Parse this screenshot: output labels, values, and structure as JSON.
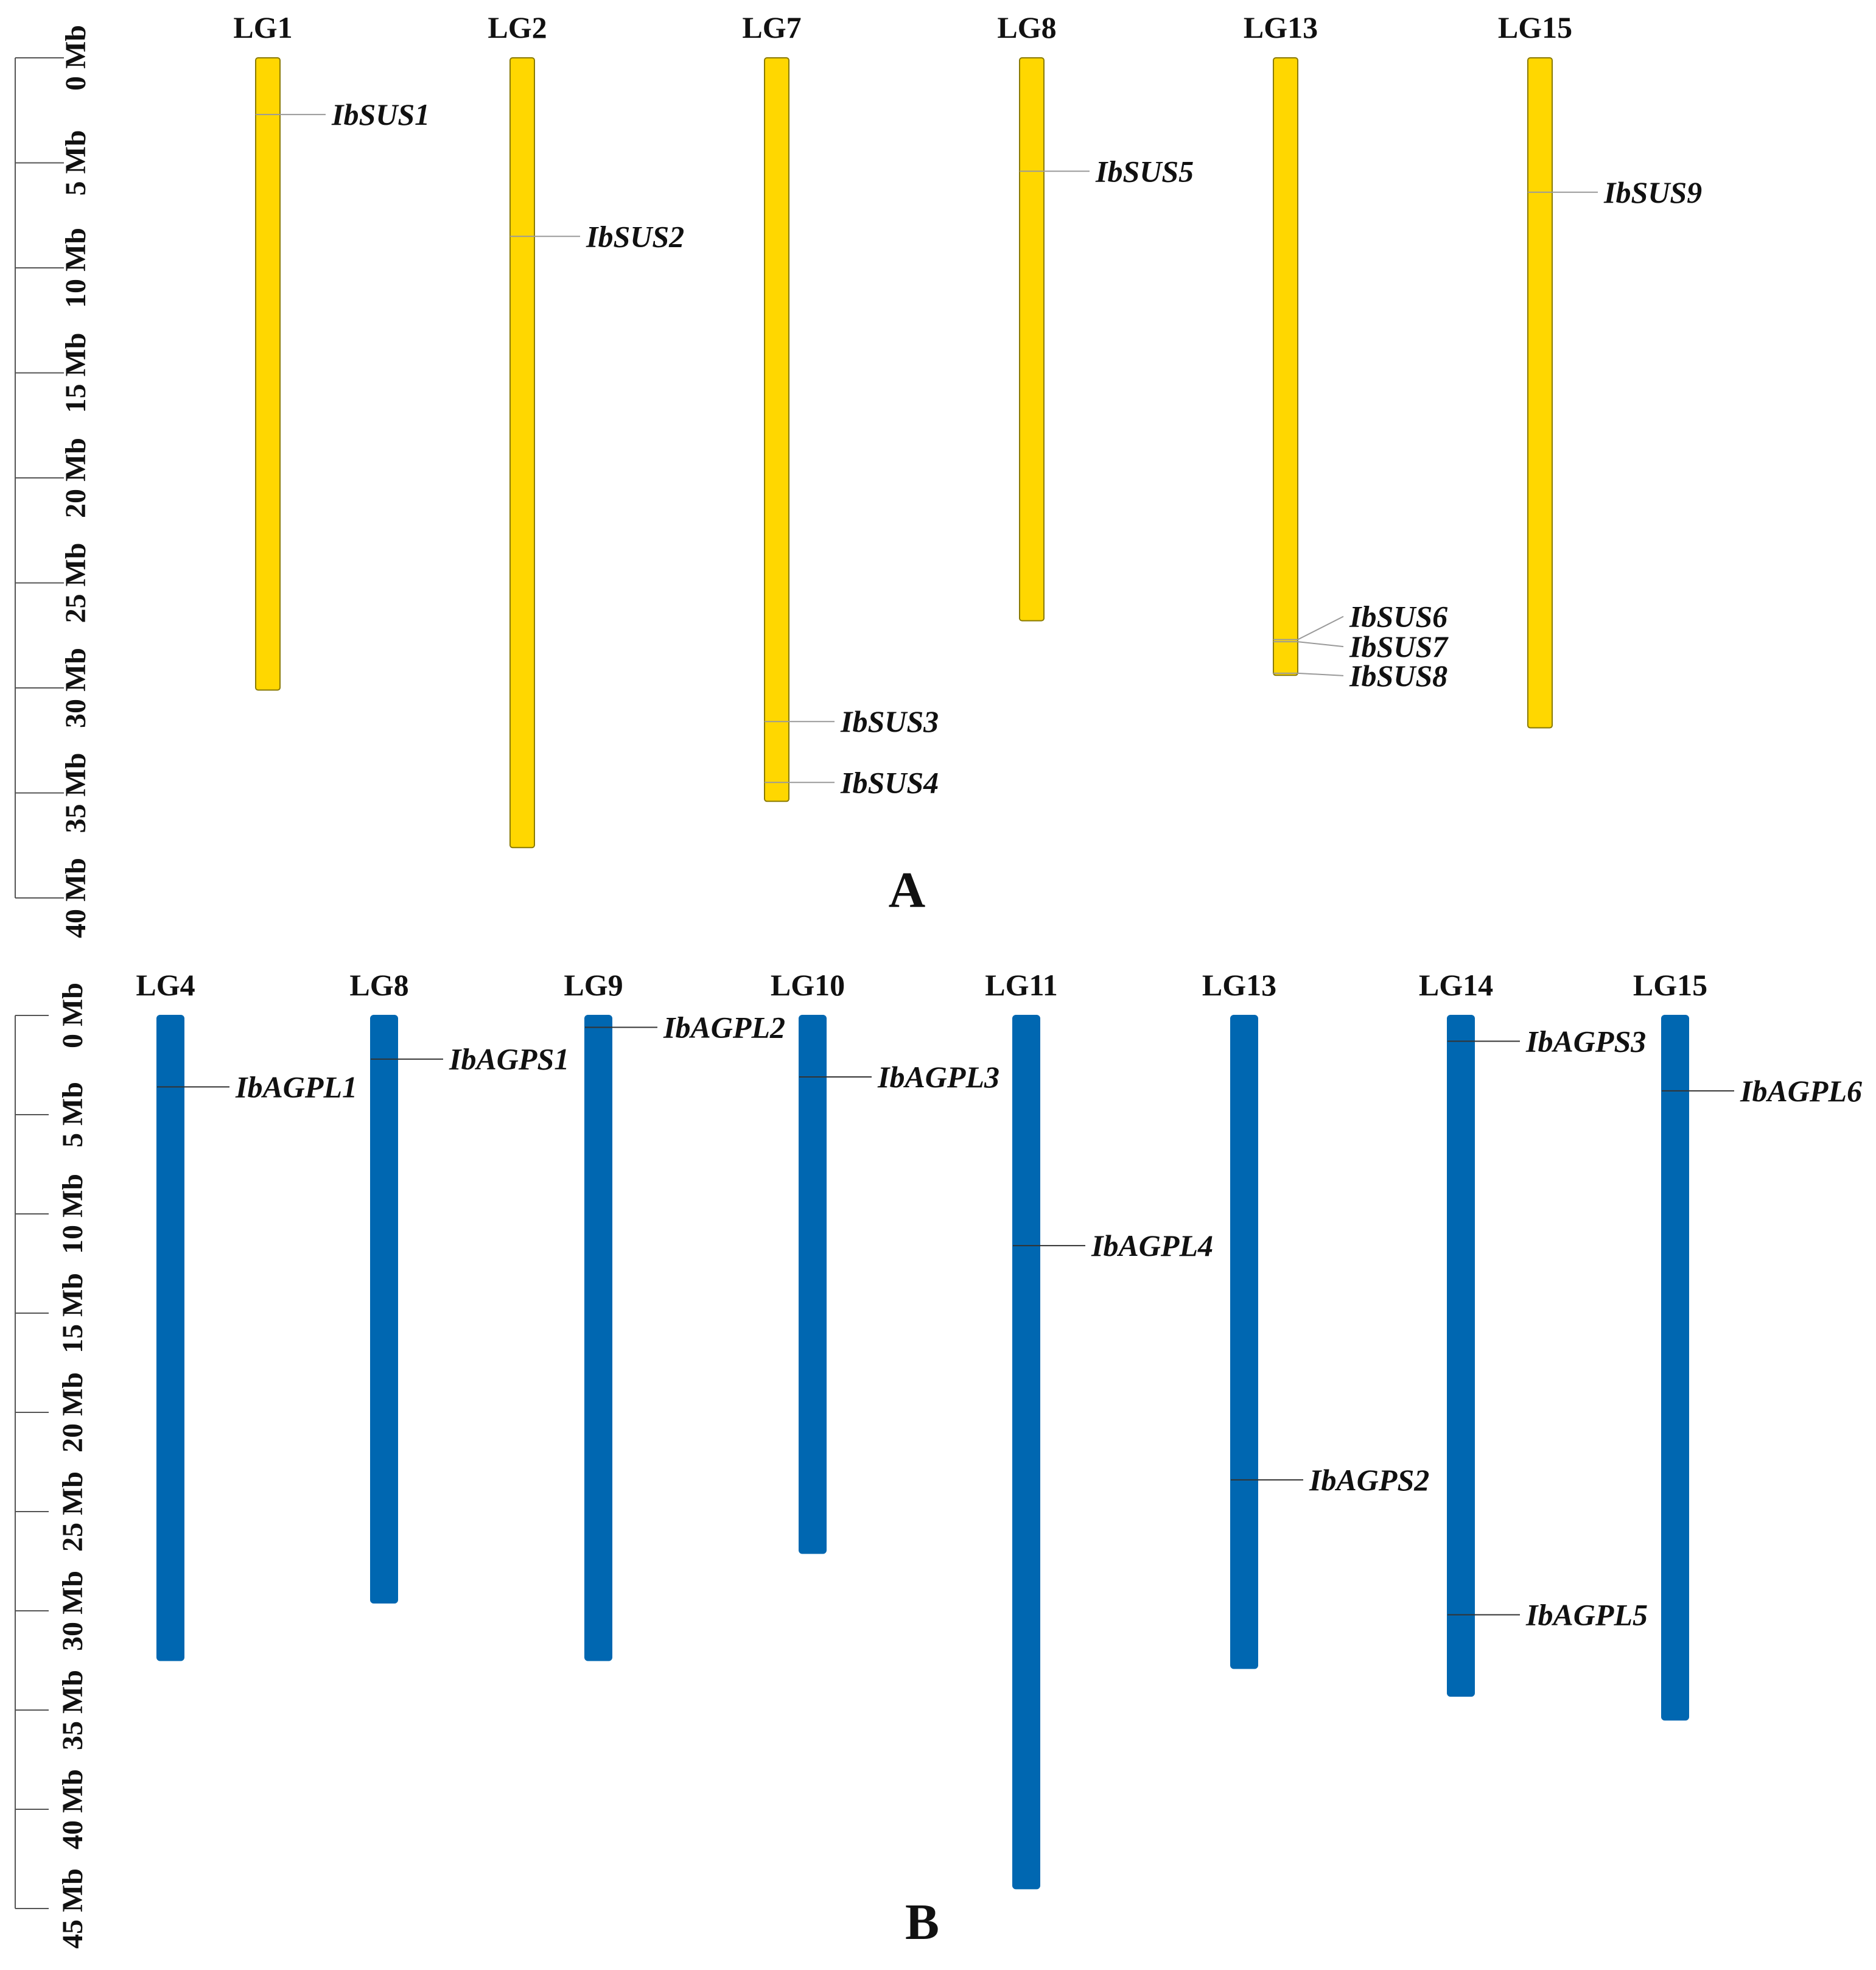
{
  "panels": [
    {
      "id": "A",
      "label": "A",
      "unit": "Mb",
      "axis_ticks": [
        "0 Mb",
        "5 Mb",
        "10 Mb",
        "15 Mb",
        "20 Mb",
        "25 Mb",
        "30 Mb",
        "35 Mb",
        "40 Mb"
      ],
      "chromosome_color": "#FFD700",
      "chromosome_border": "#8a7a00",
      "chromosomes": [
        {
          "name": "LG1",
          "length_mb": 30.1,
          "genes": [
            {
              "name": "IbSUS1",
              "pos_mb": 2.7
            }
          ]
        },
        {
          "name": "LG2",
          "length_mb": 37.6,
          "genes": [
            {
              "name": "IbSUS2",
              "pos_mb": 8.5
            }
          ]
        },
        {
          "name": "LG7",
          "length_mb": 35.4,
          "genes": [
            {
              "name": "IbSUS3",
              "pos_mb": 31.6
            },
            {
              "name": "IbSUS4",
              "pos_mb": 34.5
            }
          ]
        },
        {
          "name": "LG8",
          "length_mb": 26.8,
          "genes": [
            {
              "name": "IbSUS5",
              "pos_mb": 5.4
            }
          ]
        },
        {
          "name": "LG13",
          "length_mb": 29.4,
          "genes": [
            {
              "name": "IbSUS6",
              "pos_mb": 27.7
            },
            {
              "name": "IbSUS7",
              "pos_mb": 27.8
            },
            {
              "name": "IbSUS8",
              "pos_mb": 29.3
            }
          ]
        },
        {
          "name": "LG15",
          "length_mb": 31.9,
          "genes": [
            {
              "name": "IbSUS9",
              "pos_mb": 6.4
            }
          ]
        }
      ]
    },
    {
      "id": "B",
      "label": "B",
      "unit": "Mb",
      "axis_ticks": [
        "0 Mb",
        "5 Mb",
        "10 Mb",
        "15 Mb",
        "20 Mb",
        "25 Mb",
        "30 Mb",
        "35 Mb",
        "40 Mb",
        "45 Mb"
      ],
      "chromosome_color": "#0067B1",
      "chromosome_border": "#0067B1",
      "chromosomes": [
        {
          "name": "LG4",
          "length_mb": 32.5,
          "genes": [
            {
              "name": "IbAGPL1",
              "pos_mb": 3.6
            }
          ]
        },
        {
          "name": "LG8",
          "length_mb": 29.6,
          "genes": [
            {
              "name": "IbAGPS1",
              "pos_mb": 2.2
            }
          ]
        },
        {
          "name": "LG9",
          "length_mb": 32.5,
          "genes": [
            {
              "name": "IbAGPL2",
              "pos_mb": 0.6
            }
          ]
        },
        {
          "name": "LG10",
          "length_mb": 27.1,
          "genes": [
            {
              "name": "IbAGPL3",
              "pos_mb": 3.1
            }
          ]
        },
        {
          "name": "LG11",
          "length_mb": 44.0,
          "genes": [
            {
              "name": "IbAGPL4",
              "pos_mb": 11.6
            }
          ]
        },
        {
          "name": "LG13",
          "length_mb": 32.9,
          "genes": [
            {
              "name": "IbAGPS2",
              "pos_mb": 23.4
            }
          ]
        },
        {
          "name": "LG14",
          "length_mb": 34.3,
          "genes": [
            {
              "name": "IbAGPS3",
              "pos_mb": 1.3
            },
            {
              "name": "IbAGPL5",
              "pos_mb": 30.2
            }
          ]
        },
        {
          "name": "LG15",
          "length_mb": 35.5,
          "genes": [
            {
              "name": "IbAGPL6",
              "pos_mb": 3.8
            }
          ]
        }
      ]
    }
  ]
}
